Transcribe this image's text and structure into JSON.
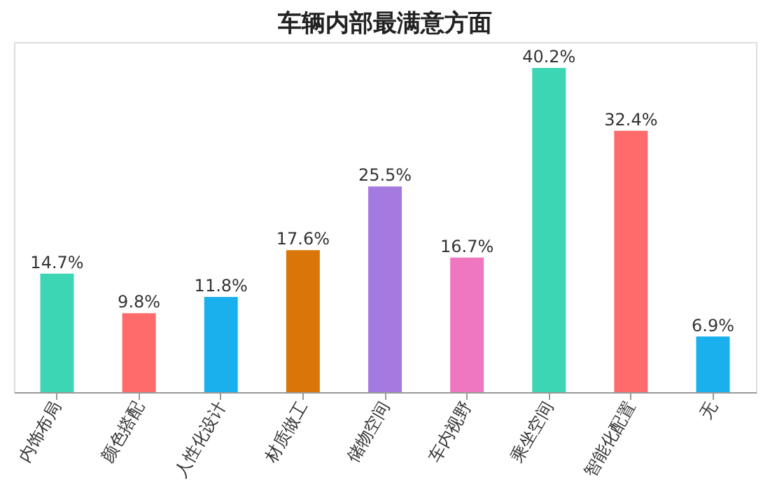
{
  "chart_data": {
    "type": "bar",
    "title": "车辆内部最满意方面",
    "categories": [
      "内饰布局",
      "颜色搭配",
      "人性化设计",
      "材质做工",
      "储物空间",
      "车内视野",
      "乘坐空间",
      "智能化配置",
      "无"
    ],
    "values": [
      14.7,
      9.8,
      11.8,
      17.6,
      25.5,
      16.7,
      40.2,
      32.4,
      6.9
    ],
    "colors": [
      "#3dd6b5",
      "#ff6b6b",
      "#1ab0ee",
      "#d9760a",
      "#a57ae0",
      "#ee77c0",
      "#3dd6b5",
      "#ff6b6b",
      "#1ab0ee"
    ],
    "value_labels": [
      "14.7%",
      "9.8%",
      "11.8%",
      "17.6%",
      "25.5%",
      "16.7%",
      "40.2%",
      "32.4%",
      "6.9%"
    ],
    "grid": false
  }
}
